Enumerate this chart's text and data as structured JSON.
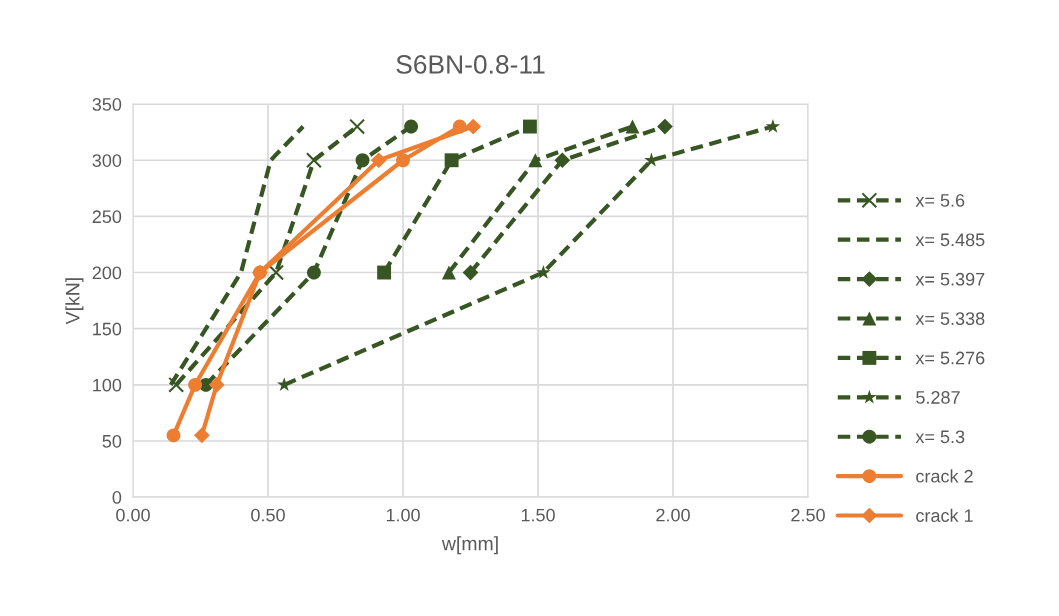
{
  "chart_data": {
    "type": "line",
    "title": "S6BN-0.8-11",
    "xlabel": "w[mm]",
    "ylabel": "V[kN]",
    "xlim": [
      0,
      2.5
    ],
    "xticks": [
      {
        "value": 0,
        "label": "0.00"
      },
      {
        "value": 0.5,
        "label": "0.50"
      },
      {
        "value": 1,
        "label": "1.00"
      },
      {
        "value": 1.5,
        "label": "1.50"
      },
      {
        "value": 2,
        "label": "2.00"
      },
      {
        "value": 2.5,
        "label": "2.50"
      }
    ],
    "ylim": [
      0,
      350
    ],
    "yticks": [
      0,
      50,
      100,
      150,
      200,
      250,
      300,
      350
    ],
    "grid": true,
    "legend": "right",
    "series": [
      {
        "name": "x= 5.6",
        "color": "#375623",
        "marker": "cross",
        "line_style": "dashed",
        "x": [
          0.16,
          0.53,
          0.67,
          0.83
        ],
        "values": [
          100,
          200,
          300,
          330
        ]
      },
      {
        "name": "x= 5.485",
        "color": "#375623",
        "marker": "none",
        "line_style": "dashed",
        "x": [
          0.14,
          0.4,
          0.51,
          0.63
        ],
        "values": [
          100,
          200,
          300,
          330
        ]
      },
      {
        "name": "x= 5.397",
        "color": "#375623",
        "marker": "diamond",
        "line_style": "dashed",
        "x": [
          1.25,
          1.59,
          1.97
        ],
        "values": [
          200,
          300,
          330
        ]
      },
      {
        "name": "x= 5.338",
        "color": "#375623",
        "marker": "triangle",
        "line_style": "dashed",
        "x": [
          1.17,
          1.49,
          1.85
        ],
        "values": [
          200,
          300,
          330
        ]
      },
      {
        "name": "x= 5.276",
        "color": "#375623",
        "marker": "square",
        "line_style": "dashed",
        "x": [
          0.93,
          1.18,
          1.47
        ],
        "values": [
          200,
          300,
          330
        ]
      },
      {
        "name": "5.287",
        "color": "#375623",
        "marker": "star",
        "line_style": "dashed",
        "x": [
          0.56,
          1.52,
          1.92,
          2.37
        ],
        "values": [
          100,
          200,
          300,
          330
        ]
      },
      {
        "name": "x= 5.3",
        "color": "#375623",
        "marker": "circle",
        "line_style": "dashed",
        "x": [
          0.27,
          0.67,
          0.85,
          1.03
        ],
        "values": [
          100,
          200,
          300,
          330
        ]
      },
      {
        "name": "crack 2",
        "color": "#ed7d31",
        "marker": "circle",
        "line_style": "solid",
        "x": [
          0.15,
          0.23,
          0.47,
          1.0,
          1.21
        ],
        "values": [
          55,
          100,
          200,
          300,
          330
        ]
      },
      {
        "name": "crack 1",
        "color": "#ed7d31",
        "marker": "diamond",
        "line_style": "solid",
        "x": [
          0.255,
          0.31,
          0.47,
          0.91,
          1.26
        ],
        "values": [
          55,
          100,
          200,
          300,
          330
        ]
      }
    ]
  }
}
